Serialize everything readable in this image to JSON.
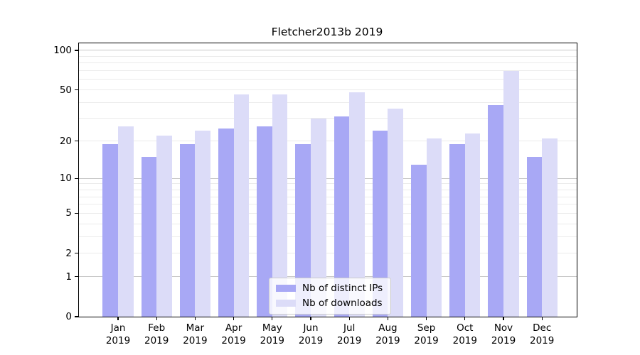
{
  "title": "Fletcher2013b 2019",
  "chart_data": {
    "type": "bar",
    "scale": "log1p",
    "title": "Fletcher2013b 2019",
    "categories": [
      "Jan 2019",
      "Feb 2019",
      "Mar 2019",
      "Apr 2019",
      "May 2019",
      "Jun 2019",
      "Jul 2019",
      "Aug 2019",
      "Sep 2019",
      "Oct 2019",
      "Nov 2019",
      "Dec 2019"
    ],
    "month_labels": [
      "Jan",
      "Feb",
      "Mar",
      "Apr",
      "May",
      "Jun",
      "Jul",
      "Aug",
      "Sep",
      "Oct",
      "Nov",
      "Dec"
    ],
    "year_label": "2019",
    "series": [
      {
        "name": "Nb of distinct IPs",
        "color": "#a8a8f5",
        "values": [
          19,
          15,
          19,
          25,
          26,
          19,
          31,
          24,
          13,
          19,
          38,
          15
        ]
      },
      {
        "name": "Nb of downloads",
        "color": "#dcdcf8",
        "values": [
          26,
          22,
          24,
          46,
          46,
          30,
          48,
          36,
          21,
          23,
          70,
          21
        ]
      }
    ],
    "xlabel": "",
    "ylabel": "",
    "ylim": [
      0,
      113.2
    ],
    "y_ticks": [
      0,
      1,
      2,
      5,
      10,
      20,
      50,
      100
    ],
    "y_gridlines_major": [
      1,
      10,
      100
    ],
    "y_gridlines_minor": [
      2,
      3,
      4,
      5,
      6,
      7,
      8,
      9,
      20,
      30,
      40,
      50,
      60,
      70,
      80,
      90
    ],
    "grid": "on",
    "legend_position": "lower-center"
  },
  "colors": {
    "series_distinct_ips": "#a8a8f5",
    "series_downloads": "#dcdcf8",
    "gridline_minor": "#ebebeb",
    "gridline_major": "#c6c6c6",
    "axis": "#000000",
    "legend_border": "#cccccc"
  }
}
